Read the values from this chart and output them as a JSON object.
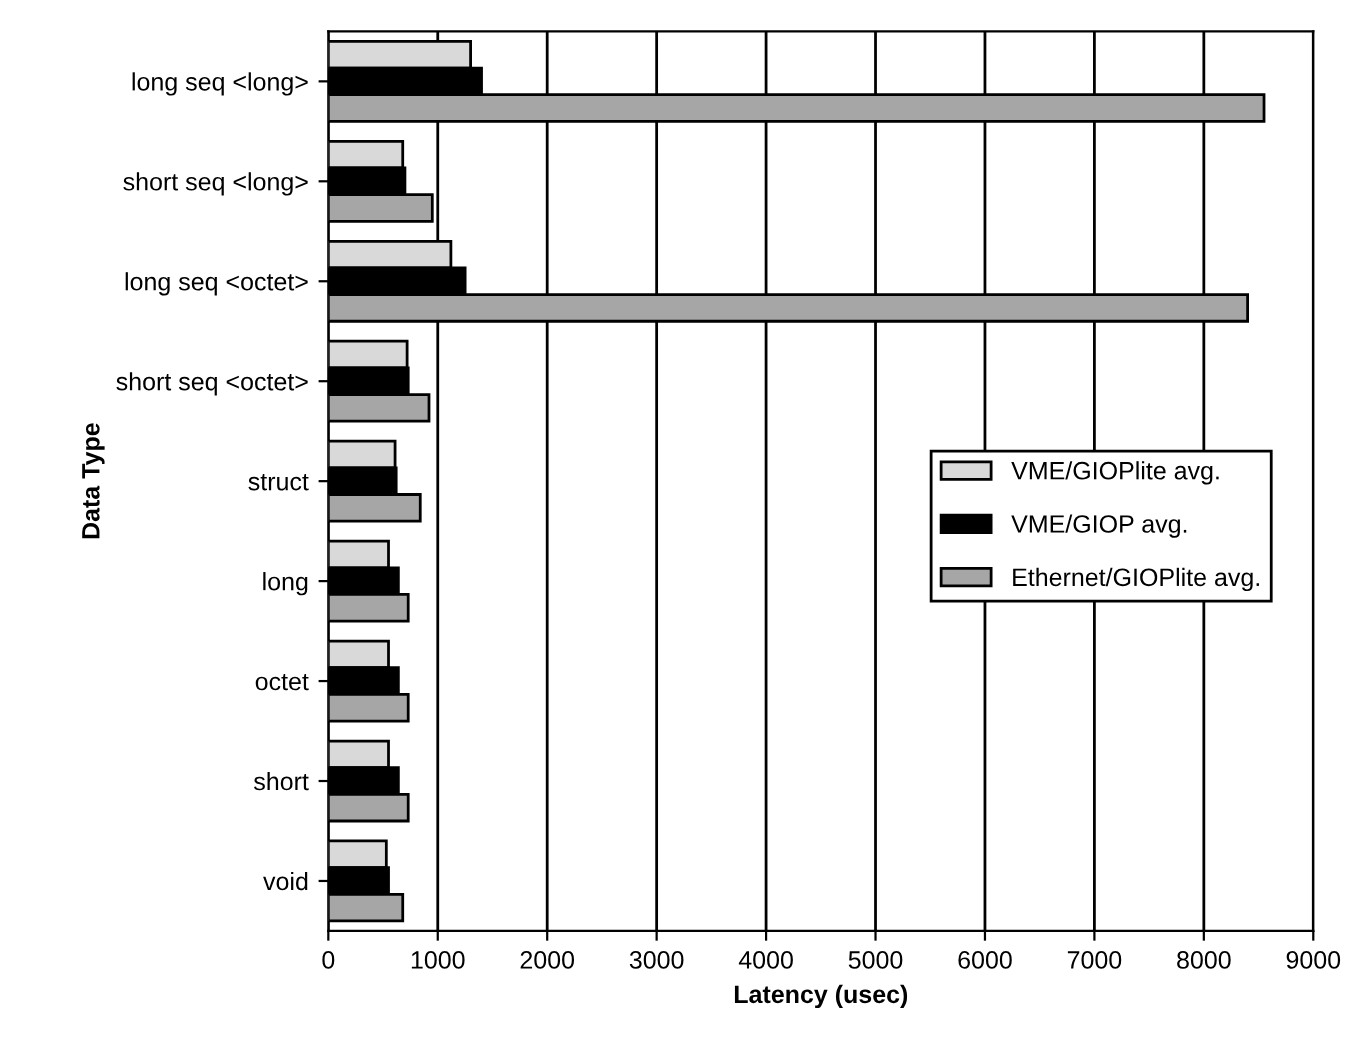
{
  "chart_data": {
    "type": "bar",
    "orientation": "horizontal",
    "xlabel": "Latency (usec)",
    "ylabel": "Data Type",
    "categories": [
      "long seq <long>",
      "short seq <long>",
      "long seq <octet>",
      "short seq <octet>",
      "struct",
      "long",
      "octet",
      "short",
      "void"
    ],
    "series": [
      {
        "name": "VME/GIOPlite avg.",
        "color": "#d9d9d9",
        "values": [
          1300,
          680,
          1120,
          720,
          610,
          550,
          550,
          550,
          530
        ]
      },
      {
        "name": "VME/GIOP avg.",
        "color": "#000000",
        "values": [
          1400,
          700,
          1250,
          730,
          620,
          640,
          640,
          640,
          550
        ]
      },
      {
        "name": "Ethernet/GIOPlite avg.",
        "color": "#a6a6a6",
        "values": [
          8550,
          950,
          8400,
          920,
          840,
          730,
          730,
          730,
          680
        ]
      }
    ],
    "xlim": [
      0,
      9000
    ],
    "xticks": [
      0,
      1000,
      2000,
      3000,
      4000,
      5000,
      6000,
      7000,
      8000,
      9000
    ],
    "grid": "x",
    "legend": "right"
  }
}
